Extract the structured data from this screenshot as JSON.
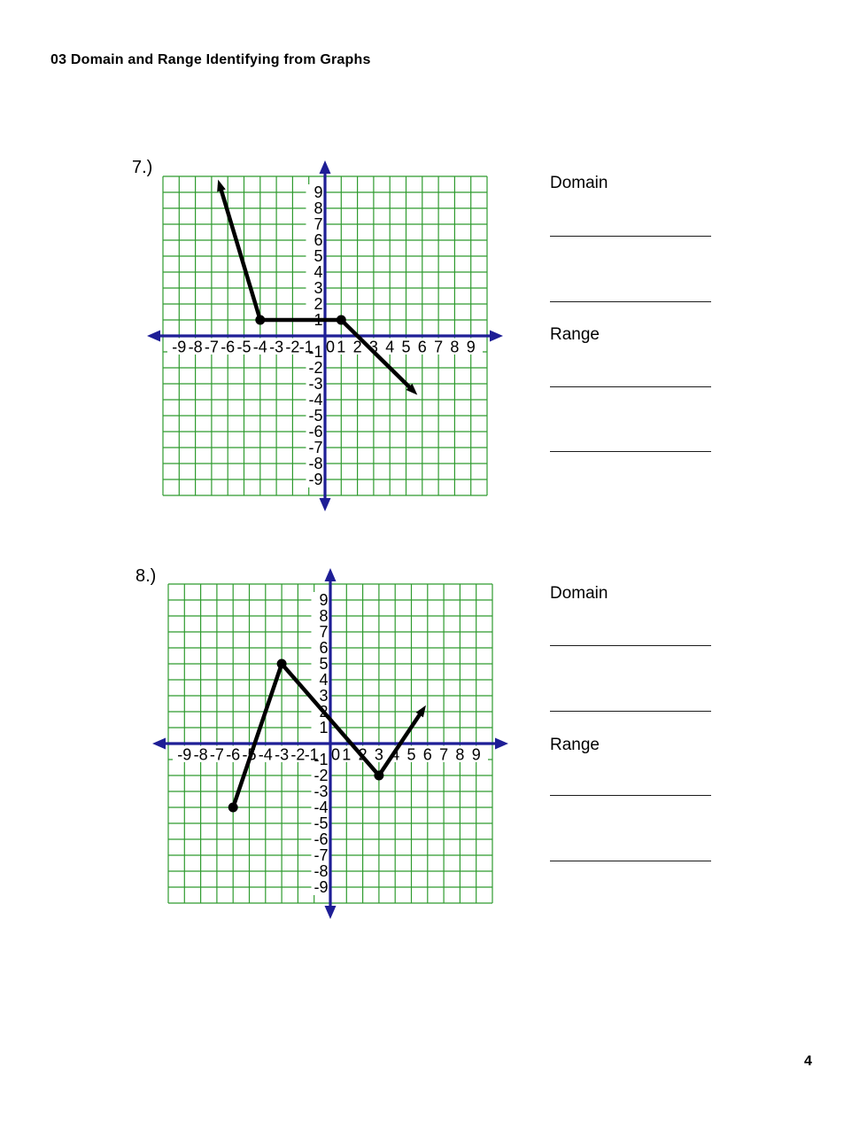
{
  "page": {
    "title": "03 Domain and Range Identifying from Graphs",
    "page_number": "4"
  },
  "problems": [
    {
      "label": "7.)",
      "domain_label": "Domain",
      "range_label": "Range"
    },
    {
      "label": "8.)",
      "domain_label": "Domain",
      "range_label": "Range"
    }
  ],
  "colors": {
    "grid": "#2f9b2f",
    "axis": "#1e1e96",
    "plot": "#000000",
    "tick_text": "#000000"
  },
  "chart_data": [
    {
      "type": "line",
      "title": "Problem 7 piecewise graph",
      "x_range": [
        -10,
        10
      ],
      "y_range": [
        -10,
        10
      ],
      "grid": true,
      "x_ticks": [
        -9,
        -8,
        -7,
        -6,
        -5,
        -4,
        -3,
        -2,
        -1,
        0,
        1,
        2,
        3,
        4,
        5,
        6,
        7,
        8,
        9
      ],
      "y_ticks": [
        9,
        8,
        7,
        6,
        5,
        4,
        3,
        2,
        1,
        -1,
        -2,
        -3,
        -4,
        -5,
        -6,
        -7,
        -8,
        -9
      ],
      "series": [
        {
          "name": "piecewise-line",
          "points": [
            [
              -6.6,
              9.8
            ],
            [
              -4,
              1
            ],
            [
              1,
              1
            ],
            [
              5.7,
              -3.7
            ]
          ],
          "arrow_start": true,
          "arrow_end": true,
          "solid_dots": [
            [
              -4,
              1
            ],
            [
              1,
              1
            ]
          ]
        }
      ]
    },
    {
      "type": "line",
      "title": "Problem 8 piecewise graph",
      "x_range": [
        -10,
        10
      ],
      "y_range": [
        -10,
        10
      ],
      "grid": true,
      "x_ticks": [
        -9,
        -8,
        -7,
        -6,
        -5,
        -4,
        -3,
        -2,
        -1,
        0,
        1,
        2,
        3,
        4,
        5,
        6,
        7,
        8,
        9
      ],
      "y_ticks": [
        9,
        8,
        7,
        6,
        5,
        4,
        3,
        2,
        1,
        -1,
        -2,
        -3,
        -4,
        -5,
        -6,
        -7,
        -8,
        -9
      ],
      "series": [
        {
          "name": "piecewise-line",
          "points": [
            [
              -6,
              -4
            ],
            [
              -3,
              5
            ],
            [
              3,
              -2
            ],
            [
              5.9,
              2.4
            ]
          ],
          "arrow_start": false,
          "arrow_end": true,
          "solid_dots": [
            [
              -6,
              -4
            ],
            [
              -3,
              5
            ],
            [
              3,
              -2
            ]
          ]
        }
      ]
    }
  ]
}
